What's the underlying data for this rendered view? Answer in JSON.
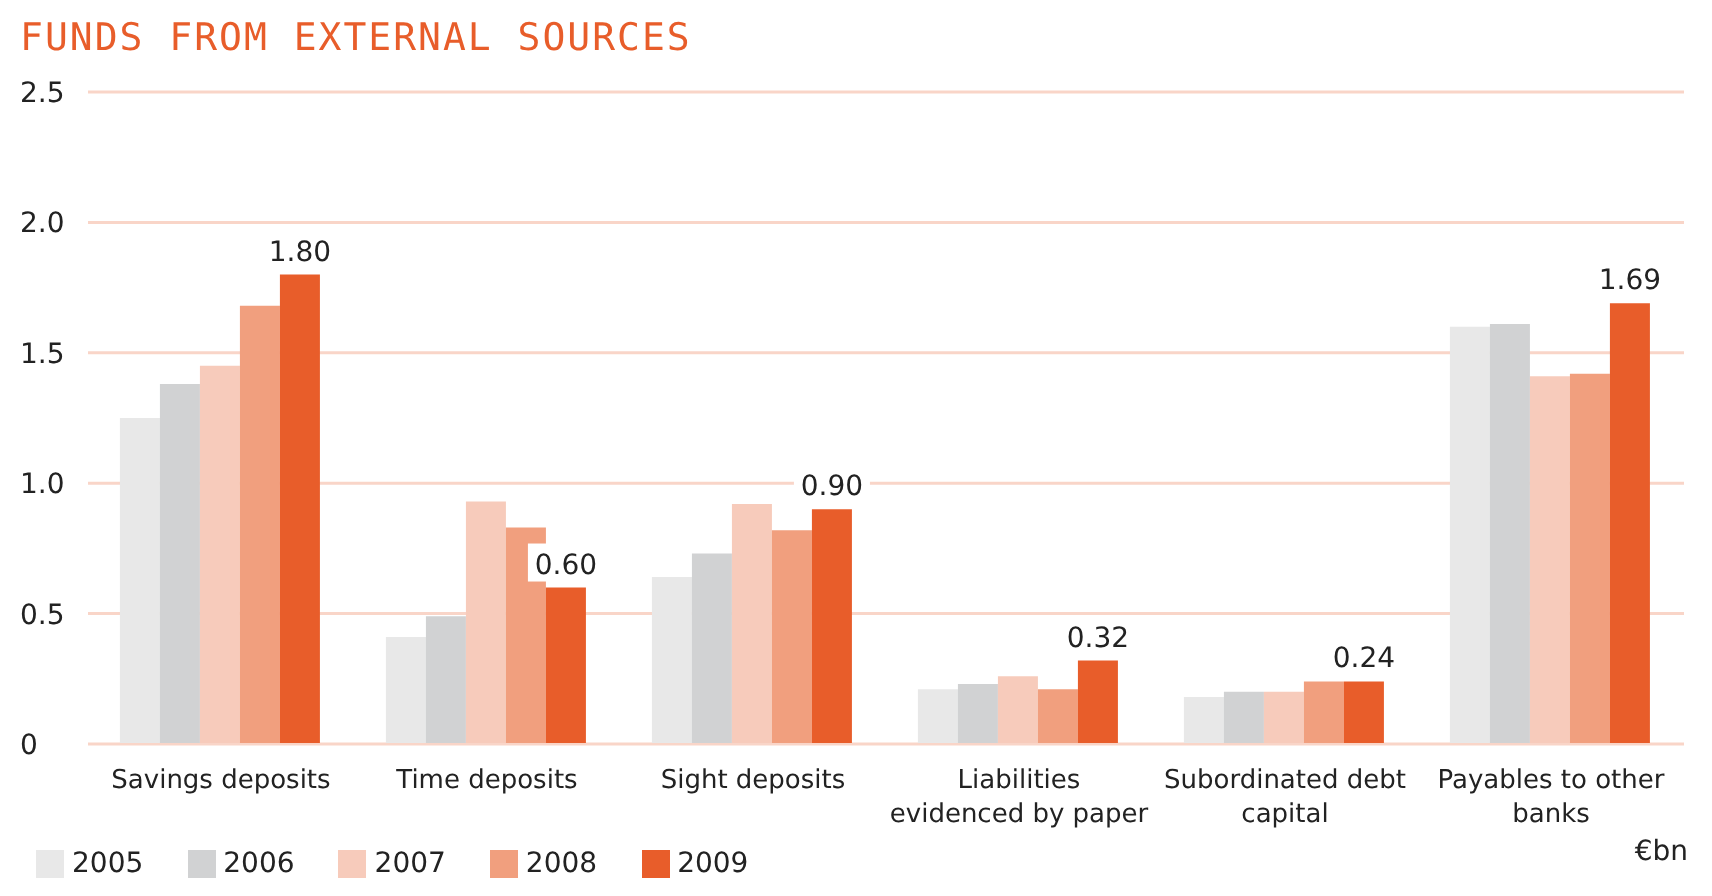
{
  "chart_data": {
    "type": "bar",
    "title": "FUNDS FROM EXTERNAL SOURCES",
    "categories": [
      "Savings deposits",
      "Time deposits",
      "Sight deposits",
      "Liabilities evidenced by paper",
      "Subordinated debt capital",
      "Payables to other banks"
    ],
    "series": [
      {
        "name": "2005",
        "color": "#e8e8e8",
        "values": [
          1.25,
          0.41,
          0.64,
          0.21,
          0.18,
          1.6
        ]
      },
      {
        "name": "2006",
        "color": "#d1d2d3",
        "values": [
          1.38,
          0.49,
          0.73,
          0.23,
          0.2,
          1.61
        ]
      },
      {
        "name": "2007",
        "color": "#f7cbbb",
        "values": [
          1.45,
          0.93,
          0.92,
          0.26,
          0.2,
          1.41
        ]
      },
      {
        "name": "2008",
        "color": "#f19f7e",
        "values": [
          1.68,
          0.83,
          0.82,
          0.21,
          0.24,
          1.42
        ]
      },
      {
        "name": "2009",
        "color": "#e85d2a",
        "values": [
          1.8,
          0.6,
          0.9,
          0.32,
          0.24,
          1.69
        ],
        "value_labels": [
          "1.80",
          "0.60",
          "0.90",
          "0.32",
          "0.24",
          "1.69"
        ]
      }
    ],
    "ylim": [
      0,
      2.5
    ],
    "yticks": [
      0,
      {
        "value": 0.5,
        "label": "0.5"
      },
      {
        "value": 1,
        "label": "1.0"
      },
      {
        "value": 1.5,
        "label": "1.5"
      },
      {
        "value": 2,
        "label": "2.0"
      },
      {
        "value": 2.5,
        "label": "2.5"
      }
    ],
    "grid": "y",
    "legend": "bottom left",
    "annotations": [
      "€bn"
    ]
  }
}
